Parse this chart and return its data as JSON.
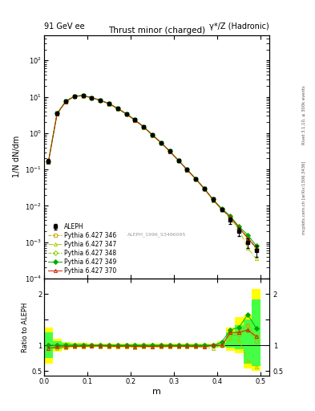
{
  "title_top_left": "91 GeV ee",
  "title_top_right": "γ*/Z (Hadronic)",
  "plot_title": "Thrust minor (charged)",
  "ylabel_main": "1/N dN/dm",
  "ylabel_ratio": "Ratio to ALEPH",
  "xlabel": "m",
  "watermark": "ALEPH_1996_S3486095",
  "right_label_top": "Rivet 3.1.10, ≥ 300k events",
  "right_label_bot": "mcplots.cern.ch [arXiv:1306.3436]",
  "x_centers": [
    0.01,
    0.03,
    0.05,
    0.07,
    0.09,
    0.11,
    0.13,
    0.15,
    0.17,
    0.19,
    0.21,
    0.23,
    0.25,
    0.27,
    0.29,
    0.31,
    0.33,
    0.35,
    0.37,
    0.39,
    0.41,
    0.43,
    0.45,
    0.47,
    0.49
  ],
  "x_edges": [
    0.0,
    0.02,
    0.04,
    0.06,
    0.08,
    0.1,
    0.12,
    0.14,
    0.16,
    0.18,
    0.2,
    0.22,
    0.24,
    0.26,
    0.28,
    0.3,
    0.32,
    0.34,
    0.36,
    0.38,
    0.4,
    0.42,
    0.44,
    0.46,
    0.48,
    0.5
  ],
  "aleph_y": [
    0.17,
    3.5,
    7.5,
    10.5,
    10.8,
    9.5,
    8.0,
    6.5,
    4.8,
    3.4,
    2.3,
    1.5,
    0.9,
    0.55,
    0.32,
    0.18,
    0.1,
    0.056,
    0.03,
    0.015,
    0.008,
    0.004,
    0.002,
    0.001,
    0.0006
  ],
  "aleph_yerr": [
    0.02,
    0.2,
    0.3,
    0.3,
    0.3,
    0.25,
    0.2,
    0.18,
    0.14,
    0.1,
    0.07,
    0.05,
    0.03,
    0.02,
    0.015,
    0.01,
    0.006,
    0.004,
    0.003,
    0.002,
    0.001,
    0.0008,
    0.0005,
    0.0003,
    0.0002
  ],
  "py346_y": [
    0.17,
    3.5,
    7.5,
    10.5,
    10.8,
    9.5,
    8.0,
    6.5,
    4.8,
    3.4,
    2.3,
    1.5,
    0.9,
    0.55,
    0.32,
    0.18,
    0.1,
    0.056,
    0.03,
    0.015,
    0.008,
    0.005,
    0.0025,
    0.0014,
    0.0007
  ],
  "py347_y": [
    0.16,
    3.3,
    7.2,
    10.2,
    10.5,
    9.3,
    7.8,
    6.3,
    4.65,
    3.3,
    2.2,
    1.45,
    0.87,
    0.53,
    0.31,
    0.175,
    0.097,
    0.054,
    0.029,
    0.014,
    0.008,
    0.0045,
    0.0022,
    0.0007,
    0.00035
  ],
  "py348_y": [
    0.17,
    3.5,
    7.5,
    10.5,
    10.8,
    9.5,
    8.0,
    6.5,
    4.8,
    3.4,
    2.3,
    1.5,
    0.9,
    0.55,
    0.32,
    0.18,
    0.1,
    0.056,
    0.03,
    0.015,
    0.008,
    0.0048,
    0.0024,
    0.0013,
    0.00065
  ],
  "py349_y": [
    0.17,
    3.5,
    7.5,
    10.5,
    10.8,
    9.5,
    8.0,
    6.5,
    4.8,
    3.4,
    2.3,
    1.5,
    0.9,
    0.55,
    0.32,
    0.18,
    0.1,
    0.056,
    0.03,
    0.015,
    0.0085,
    0.0052,
    0.0027,
    0.0016,
    0.0008
  ],
  "py370_y": [
    0.16,
    3.4,
    7.3,
    10.3,
    10.6,
    9.4,
    7.9,
    6.4,
    4.7,
    3.35,
    2.25,
    1.47,
    0.88,
    0.54,
    0.315,
    0.177,
    0.098,
    0.055,
    0.029,
    0.015,
    0.008,
    0.005,
    0.0025,
    0.0013,
    0.0007
  ],
  "ratio_346": [
    1.0,
    1.0,
    1.0,
    1.0,
    1.0,
    1.0,
    1.0,
    1.0,
    1.0,
    1.0,
    1.0,
    1.0,
    1.0,
    1.0,
    1.0,
    1.0,
    1.0,
    1.0,
    1.0,
    1.0,
    1.0,
    1.25,
    1.25,
    1.4,
    1.17
  ],
  "ratio_347": [
    0.94,
    0.94,
    0.96,
    0.97,
    0.97,
    0.98,
    0.975,
    0.97,
    0.97,
    0.97,
    0.957,
    0.967,
    0.967,
    0.964,
    0.969,
    0.972,
    0.97,
    0.964,
    0.967,
    0.933,
    1.0,
    1.125,
    1.1,
    0.7,
    0.583
  ],
  "ratio_348": [
    1.0,
    1.0,
    1.0,
    1.0,
    1.0,
    1.0,
    1.0,
    1.0,
    1.0,
    1.0,
    1.0,
    1.0,
    1.0,
    1.0,
    1.0,
    1.0,
    1.0,
    1.0,
    1.0,
    1.0,
    1.0,
    1.2,
    1.2,
    1.3,
    1.083
  ],
  "ratio_349": [
    1.0,
    1.0,
    1.0,
    1.0,
    1.0,
    1.0,
    1.0,
    1.0,
    1.0,
    1.0,
    1.0,
    1.0,
    1.0,
    1.0,
    1.0,
    1.0,
    1.0,
    1.0,
    1.0,
    1.0,
    1.0625,
    1.3,
    1.35,
    1.6,
    1.333
  ],
  "ratio_370": [
    0.94,
    0.97,
    0.97,
    0.981,
    0.981,
    0.989,
    0.9875,
    0.985,
    0.979,
    0.985,
    0.978,
    0.98,
    0.978,
    0.982,
    0.984,
    0.983,
    0.98,
    0.982,
    0.967,
    1.0,
    1.0,
    1.25,
    1.25,
    1.3,
    1.167
  ],
  "band_yellow_x": [
    0.0,
    0.02,
    0.04,
    0.06,
    0.08,
    0.1,
    0.12,
    0.14,
    0.16,
    0.18,
    0.2,
    0.22,
    0.24,
    0.26,
    0.28,
    0.3,
    0.32,
    0.34,
    0.36,
    0.38,
    0.4,
    0.42,
    0.44,
    0.46,
    0.48
  ],
  "band_yellow_lo": [
    0.65,
    0.88,
    0.93,
    0.95,
    0.95,
    0.96,
    0.965,
    0.96,
    0.96,
    0.96,
    0.96,
    0.96,
    0.96,
    0.96,
    0.965,
    0.965,
    0.965,
    0.965,
    0.965,
    0.965,
    0.95,
    0.9,
    0.85,
    0.55,
    0.5
  ],
  "band_yellow_hi": [
    1.35,
    1.12,
    1.07,
    1.05,
    1.05,
    1.04,
    1.035,
    1.04,
    1.04,
    1.04,
    1.04,
    1.04,
    1.04,
    1.04,
    1.035,
    1.035,
    1.035,
    1.035,
    1.035,
    1.035,
    1.08,
    1.35,
    1.55,
    1.6,
    2.1
  ],
  "band_green_lo": [
    0.75,
    0.92,
    0.95,
    0.97,
    0.97,
    0.975,
    0.978,
    0.975,
    0.975,
    0.975,
    0.975,
    0.975,
    0.975,
    0.975,
    0.978,
    0.978,
    0.978,
    0.978,
    0.978,
    0.978,
    0.97,
    0.95,
    0.92,
    0.65,
    0.6
  ],
  "band_green_hi": [
    1.25,
    1.08,
    1.05,
    1.03,
    1.03,
    1.025,
    1.022,
    1.025,
    1.025,
    1.025,
    1.025,
    1.025,
    1.025,
    1.025,
    1.022,
    1.022,
    1.022,
    1.022,
    1.022,
    1.022,
    1.05,
    1.25,
    1.4,
    1.5,
    1.9
  ],
  "color_aleph": "#000000",
  "color_346": "#ccaa00",
  "color_347": "#aacc00",
  "color_348": "#88cc00",
  "color_349": "#00aa00",
  "color_370": "#cc2200",
  "color_yellow_band": "#ffff00",
  "color_green_band": "#44ff44",
  "ylim_main": [
    0.0001,
    500
  ],
  "ylim_ratio": [
    0.4,
    2.3
  ],
  "xlim": [
    0.0,
    0.52
  ]
}
